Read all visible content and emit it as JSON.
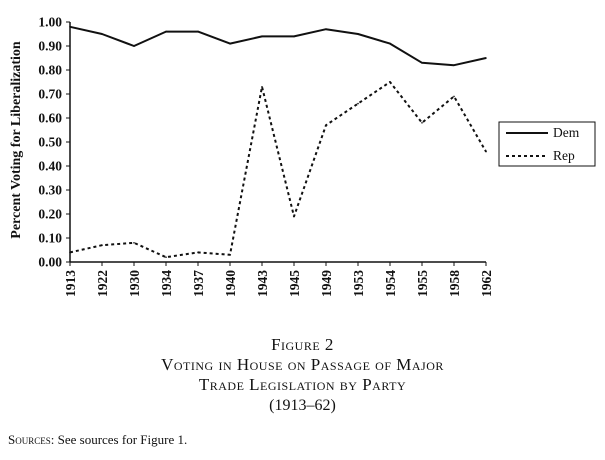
{
  "chart_data": {
    "type": "line",
    "categories": [
      "1913",
      "1922",
      "1930",
      "1934",
      "1937",
      "1940",
      "1943",
      "1945",
      "1949",
      "1953",
      "1954",
      "1955",
      "1958",
      "1962"
    ],
    "series": [
      {
        "name": "Dem",
        "style": "solid",
        "values": [
          0.98,
          0.95,
          0.9,
          0.96,
          0.96,
          0.91,
          0.94,
          0.94,
          0.97,
          0.95,
          0.91,
          0.83,
          0.82,
          0.85
        ]
      },
      {
        "name": "Rep",
        "style": "dotted",
        "values": [
          0.04,
          0.07,
          0.08,
          0.02,
          0.04,
          0.03,
          0.73,
          0.19,
          0.57,
          0.66,
          0.75,
          0.58,
          0.69,
          0.46
        ]
      }
    ],
    "ylabel": "Percent Voting for Liberalization",
    "xlabel": "",
    "ylim": [
      0,
      1
    ],
    "yticks": [
      "0.00",
      "0.10",
      "0.20",
      "0.30",
      "0.40",
      "0.50",
      "0.60",
      "0.70",
      "0.80",
      "0.90",
      "1.00"
    ],
    "legend_position": "right",
    "grid": false,
    "colors": {
      "line": "#111111",
      "background": "#ffffff"
    }
  },
  "caption": {
    "figure_label": "Figure 2",
    "title_line1": "Voting in House on Passage of Major",
    "title_line2": "Trade Legislation by Party",
    "years": "(1913–62)"
  },
  "sources": {
    "label": "Sources:",
    "text": " See sources for Figure 1."
  }
}
